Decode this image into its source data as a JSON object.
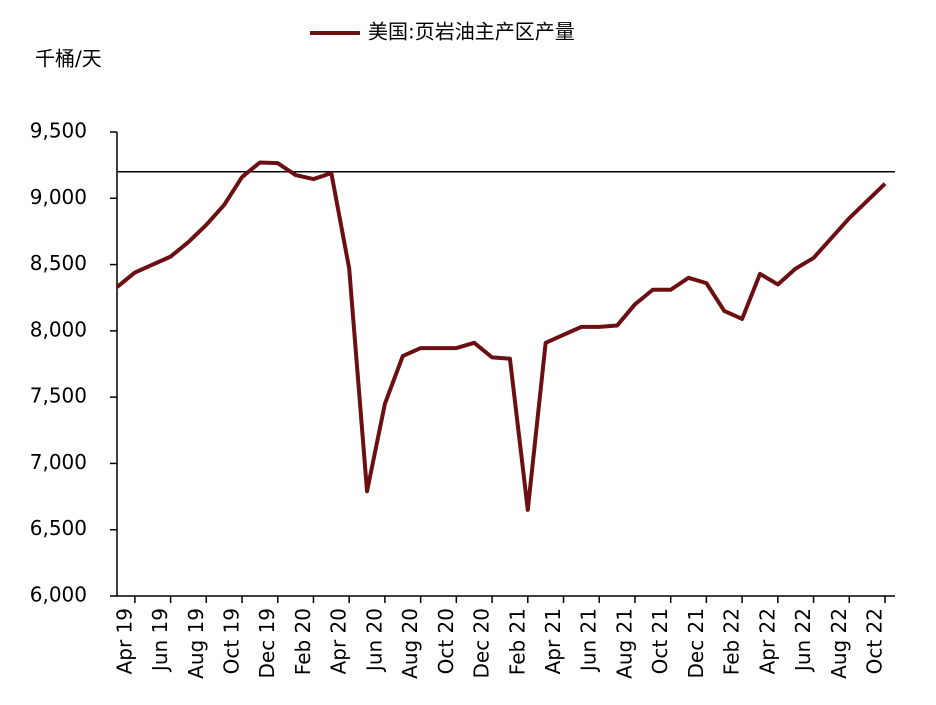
{
  "chart_data": {
    "type": "line",
    "y_label": "千桶/天",
    "categories": [
      null,
      "Apr 19",
      null,
      "Jun 19",
      null,
      "Aug 19",
      null,
      "Oct 19",
      null,
      "Dec 19",
      null,
      "Feb 20",
      null,
      "Apr 20",
      null,
      "Jun 20",
      null,
      "Aug 20",
      null,
      "Oct 20",
      null,
      "Dec 20",
      null,
      "Feb 21",
      null,
      "Apr 21",
      null,
      "Jun 21",
      null,
      "Aug 21",
      null,
      "Oct 21",
      null,
      "Dec 21",
      null,
      "Feb 22",
      null,
      "Apr 22",
      null,
      "Jun 22",
      null,
      "Aug 22",
      null,
      "Oct 22"
    ],
    "series": [
      {
        "name": "美国:页岩油主产区产量",
        "color": "#6b0f12",
        "values": [
          8330,
          8440,
          8500,
          8560,
          8670,
          8800,
          8950,
          9160,
          9270,
          9265,
          9175,
          9145,
          9190,
          8470,
          6790,
          7450,
          7810,
          7870,
          7870,
          7870,
          7910,
          7800,
          7790,
          6650,
          7910,
          7970,
          8030,
          8030,
          8040,
          8200,
          8310,
          8310,
          8400,
          8360,
          8150,
          8090,
          8430,
          8350,
          8470,
          8550,
          8700,
          8850,
          8980,
          9110
        ]
      }
    ],
    "reference_line": 9200,
    "ylim": [
      6000,
      9500
    ],
    "yticks": [
      {
        "value": 6000,
        "label": "6,000"
      },
      {
        "value": 6500,
        "label": "6,500"
      },
      {
        "value": 7000,
        "label": "7,000"
      },
      {
        "value": 7500,
        "label": "7,500"
      },
      {
        "value": 8000,
        "label": "8,000"
      },
      {
        "value": 8500,
        "label": "8,500"
      },
      {
        "value": 9000,
        "label": "9,000"
      },
      {
        "value": 9500,
        "label": "9,500"
      }
    ],
    "legend": "top"
  }
}
